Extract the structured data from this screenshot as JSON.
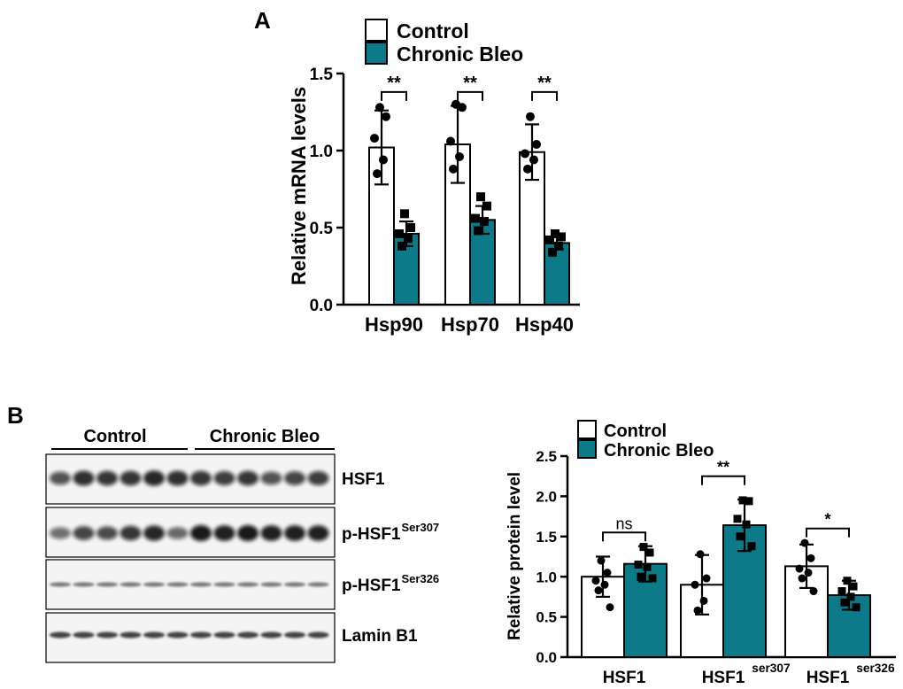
{
  "colors": {
    "control": "#ffffff",
    "treated": "#0d7a8a",
    "stroke": "#000000"
  },
  "panels": {
    "a": {
      "letter": "A"
    },
    "b": {
      "letter": "B"
    }
  },
  "chart_data": [
    {
      "type": "bar",
      "panel": "A",
      "ylabel": "Relative mRNA levels",
      "ylim": [
        0,
        1.5
      ],
      "yticks": [
        "0.0",
        "0.5",
        "1.0",
        "1.5"
      ],
      "categories": [
        "Hsp90",
        "Hsp70",
        "Hsp40"
      ],
      "legend": {
        "placement": "top"
      },
      "series": [
        {
          "name": "Control",
          "values": [
            1.02,
            1.04,
            0.99
          ],
          "sd": [
            0.24,
            0.25,
            0.18
          ],
          "points": [
            [
              1.28,
              1.22,
              1.08,
              0.94,
              0.85
            ],
            [
              1.3,
              1.28,
              1.06,
              0.96,
              0.88
            ],
            [
              1.22,
              1.04,
              0.98,
              0.94,
              0.88
            ]
          ]
        },
        {
          "name": "Chronic Bleo",
          "values": [
            0.46,
            0.55,
            0.4
          ],
          "sd": [
            0.08,
            0.09,
            0.04
          ],
          "points": [
            [
              0.59,
              0.5,
              0.46,
              0.43,
              0.38
            ],
            [
              0.7,
              0.64,
              0.56,
              0.54,
              0.48
            ],
            [
              0.46,
              0.44,
              0.42,
              0.38,
              0.34
            ]
          ]
        }
      ],
      "annotations": [
        {
          "category": "Hsp90",
          "text": "**",
          "y": 1.38
        },
        {
          "category": "Hsp70",
          "text": "**",
          "y": 1.38
        },
        {
          "category": "Hsp40",
          "text": "**",
          "y": 1.38
        }
      ]
    },
    {
      "type": "bar",
      "panel": "B",
      "ylabel": "Relative protein level",
      "ylim": [
        0,
        2.5
      ],
      "yticks": [
        "0.0",
        "0.5",
        "1.0",
        "1.5",
        "2.0",
        "2.5"
      ],
      "categories": [
        {
          "main": "HSF1",
          "sup": ""
        },
        {
          "main": "HSF1",
          "sup": "ser307"
        },
        {
          "main": "HSF1",
          "sup": "ser326"
        }
      ],
      "legend": {
        "placement": "top-right"
      },
      "series": [
        {
          "name": "Control",
          "values": [
            1.0,
            0.9,
            1.13
          ],
          "sd": [
            0.25,
            0.37,
            0.27
          ],
          "points": [
            [
              1.2,
              1.05,
              0.95,
              0.9,
              0.83,
              0.62
            ],
            [
              1.28,
              0.98,
              0.9,
              0.7,
              0.58
            ],
            [
              1.42,
              1.23,
              1.1,
              1.05,
              0.98,
              0.82
            ]
          ]
        },
        {
          "name": "Chronic Bleo",
          "values": [
            1.16,
            1.64,
            0.77
          ],
          "sd": [
            0.22,
            0.32,
            0.18
          ],
          "points": [
            [
              1.37,
              1.3,
              1.15,
              1.12,
              1.0,
              0.98
            ],
            [
              1.95,
              1.94,
              1.72,
              1.65,
              1.5,
              1.38
            ],
            [
              0.95,
              0.88,
              0.82,
              0.75,
              0.68,
              0.62
            ]
          ]
        }
      ],
      "annotations": [
        {
          "category": 0,
          "text": "ns",
          "y": 1.55
        },
        {
          "category": 1,
          "text": "**",
          "y": 2.25
        },
        {
          "category": 2,
          "text": "*",
          "y": 1.6
        }
      ]
    }
  ],
  "western_blot": {
    "groups": [
      {
        "label": "Control",
        "lanes": 6
      },
      {
        "label": "Chronic Bleo",
        "lanes": 6
      }
    ],
    "rows": [
      {
        "main": "HSF1",
        "sup": ""
      },
      {
        "main": "p-HSF1",
        "sup": "Ser307"
      },
      {
        "main": "p-HSF1",
        "sup": "Ser326"
      },
      {
        "main": "Lamin B1",
        "sup": ""
      }
    ]
  }
}
